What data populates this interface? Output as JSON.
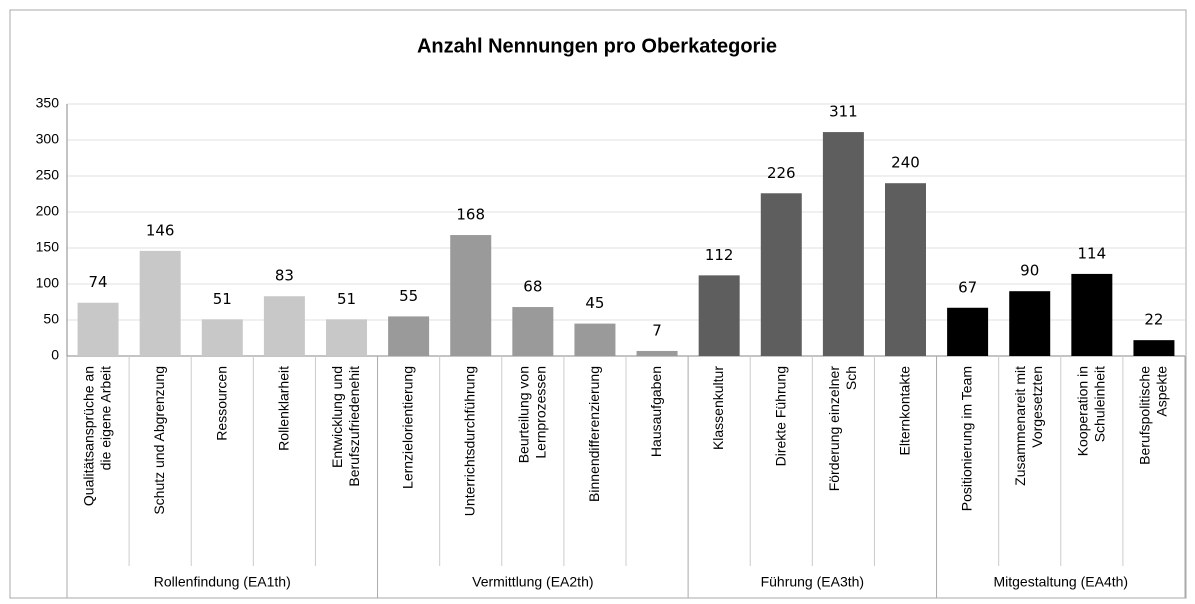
{
  "chart_data": {
    "type": "bar",
    "title": "Anzahl Nennungen pro Oberkategorie",
    "ylim": [
      0,
      350
    ],
    "yticks": [
      0,
      50,
      100,
      150,
      200,
      250,
      300,
      350
    ],
    "grid": true,
    "groups": [
      {
        "name": "Rollenfindung (EA1th)",
        "color": "#c8c8c8",
        "categories": [
          "Qualitätsansprüche an die eigene Arbeit",
          "Schutz und Abgrenzung",
          "Ressourcen",
          "Rollenklarheit",
          "Entwicklung und Berufszufriedenehit"
        ],
        "values": [
          74,
          146,
          51,
          83,
          51
        ]
      },
      {
        "name": "Vermittlung (EA2th)",
        "color": "#9a9a9a",
        "categories": [
          "Lernzielorientierung",
          "Unterrichtsdurchführung",
          "Beurteilung von Lernprozessen",
          "Binnendifferenzierung",
          "Hausaufgaben"
        ],
        "values": [
          55,
          168,
          68,
          45,
          7
        ]
      },
      {
        "name": "Führung (EA3th)",
        "color": "#5e5e5e",
        "categories": [
          "Klassenkultur",
          "Direkte Führung",
          "Förderung einzelner Sch",
          "Elternkontakte"
        ],
        "values": [
          112,
          226,
          311,
          240
        ]
      },
      {
        "name": "Mitgestaltung (EA4th)",
        "color": "#000000",
        "categories": [
          "Positionierung im Team",
          "Zusammenareit mit Vorgesetzten",
          "Kooperation in Schuleinheit",
          "Berufspolitische Aspekte"
        ],
        "values": [
          67,
          90,
          114,
          22
        ]
      }
    ]
  }
}
